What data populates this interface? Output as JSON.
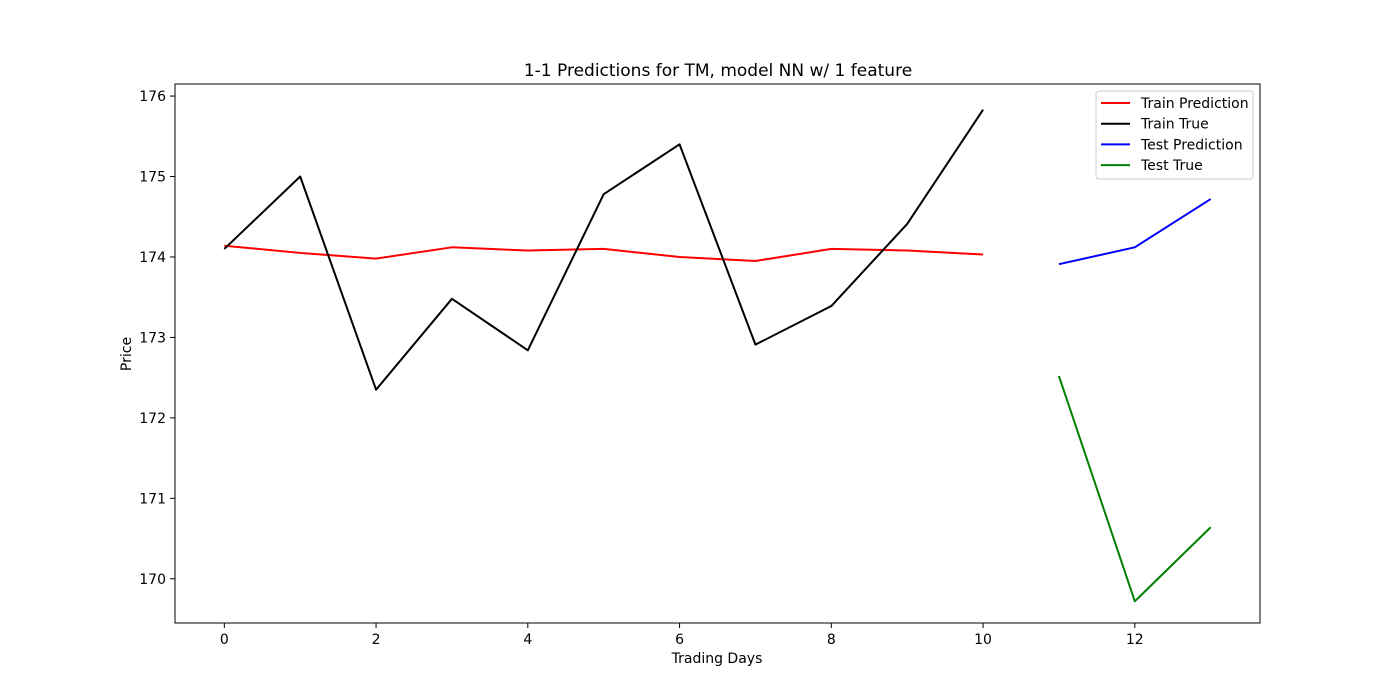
{
  "chart_data": {
    "type": "line",
    "title": "1-1 Predictions for TM, model NN w/ 1 feature",
    "xlabel": "Trading Days",
    "ylabel": "Price",
    "xlim": [
      -0.65,
      13.65
    ],
    "ylim": [
      169.45,
      176.15
    ],
    "xticks": [
      0,
      2,
      4,
      6,
      8,
      10,
      12
    ],
    "yticks": [
      170,
      171,
      172,
      173,
      174,
      175,
      176
    ],
    "grid": false,
    "legend_position": "top-right",
    "series": [
      {
        "name": "Train Prediction",
        "color": "#ff0000",
        "x": [
          0,
          1,
          2,
          3,
          4,
          5,
          6,
          7,
          8,
          9,
          10
        ],
        "y": [
          174.14,
          174.05,
          173.98,
          174.12,
          174.08,
          174.1,
          174.0,
          173.95,
          174.1,
          174.08,
          174.03
        ]
      },
      {
        "name": "Train True",
        "color": "#000000",
        "x": [
          0,
          1,
          2,
          3,
          4,
          5,
          6,
          7,
          8,
          9,
          10
        ],
        "y": [
          174.1,
          175.0,
          172.35,
          173.48,
          172.84,
          174.78,
          175.4,
          172.91,
          173.39,
          174.41,
          175.83
        ]
      },
      {
        "name": "Test Prediction",
        "color": "#0000ff",
        "x": [
          11,
          12,
          13
        ],
        "y": [
          173.91,
          174.12,
          174.72
        ]
      },
      {
        "name": "Test True",
        "color": "#008000",
        "x": [
          11,
          12,
          13
        ],
        "y": [
          172.52,
          169.72,
          170.64
        ]
      }
    ]
  }
}
